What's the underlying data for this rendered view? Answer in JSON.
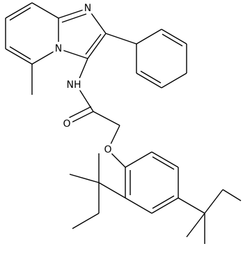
{
  "atoms": [
    "N",
    "N",
    "NH",
    "O",
    "O"
  ]
}
